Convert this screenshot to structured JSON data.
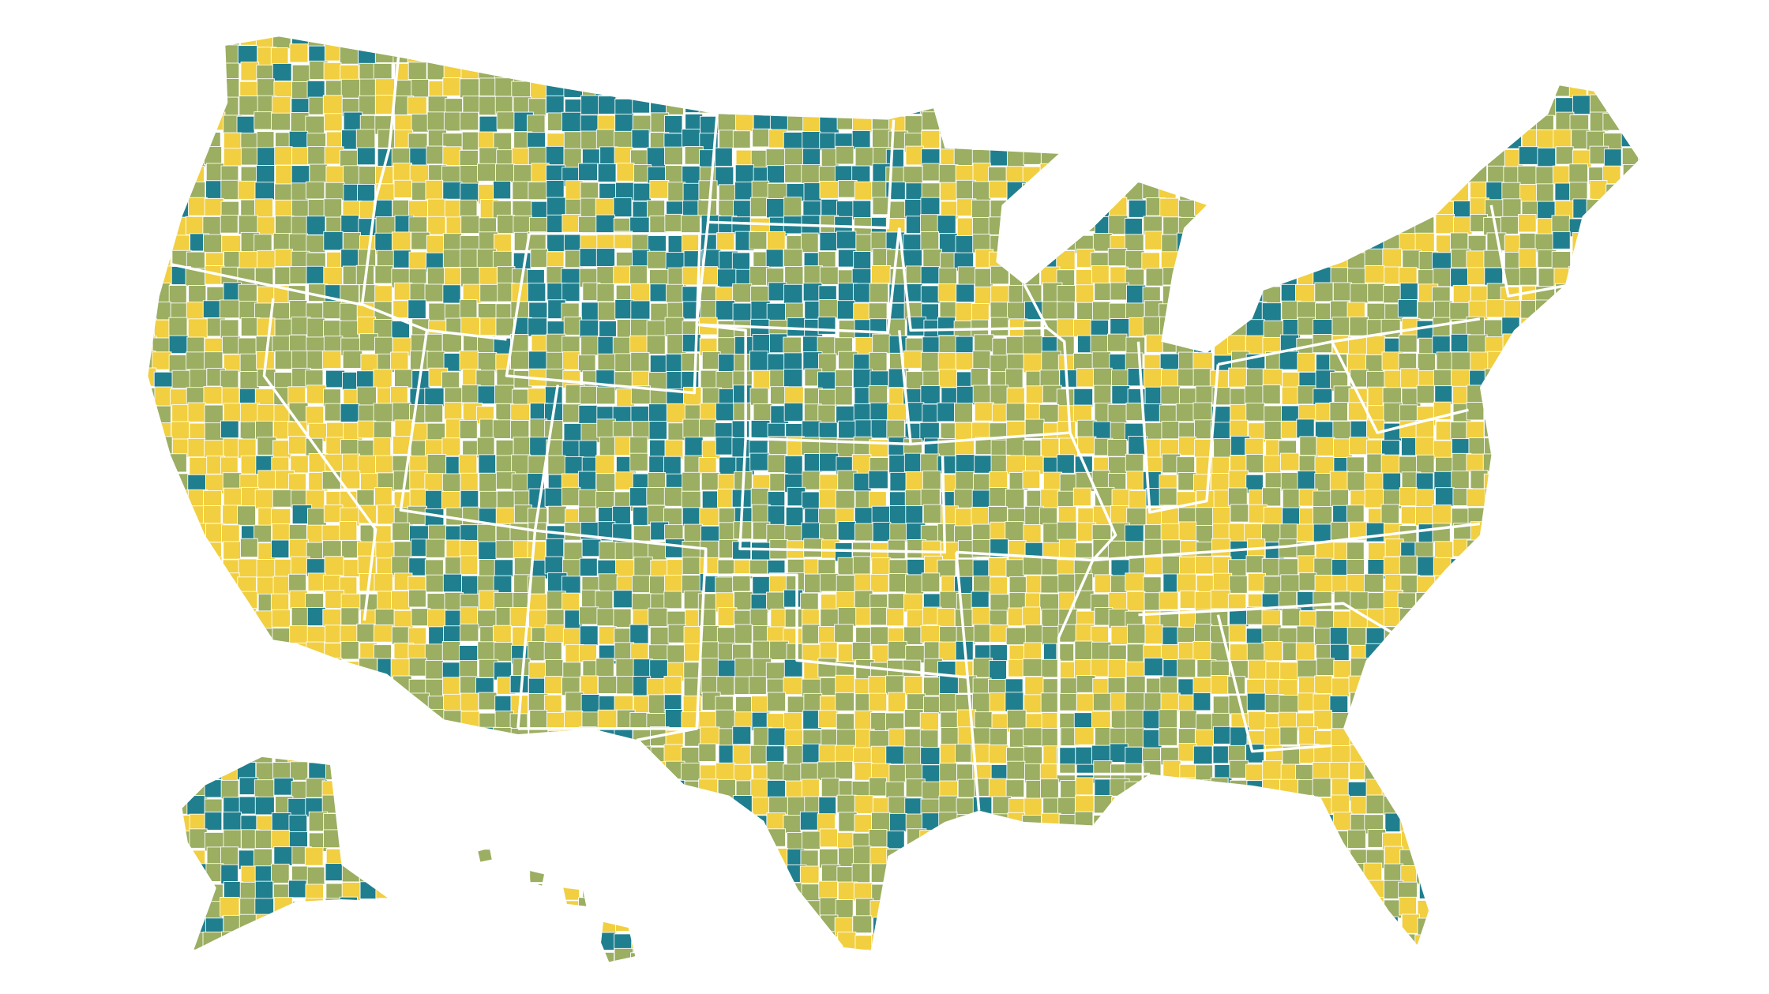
{
  "colors": [
    "#207f8e",
    "#9bae62",
    "#f1cf40"
  ]
}
